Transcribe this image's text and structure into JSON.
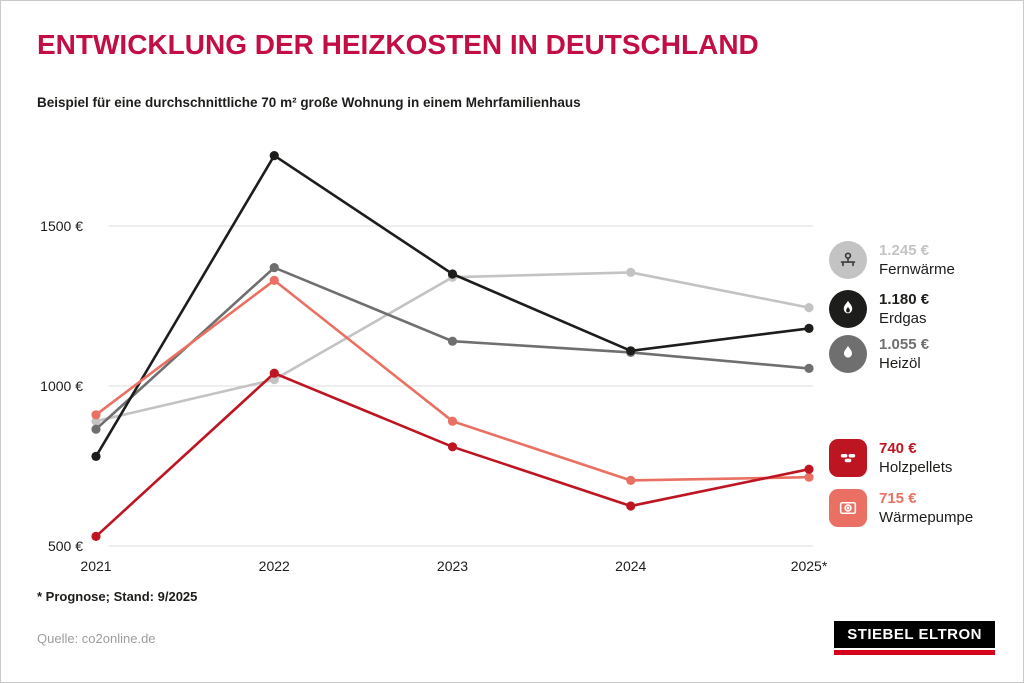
{
  "title": "ENTWICKLUNG DER HEIZKOSTEN IN DEUTSCHLAND",
  "subtitle": "Beispiel für eine durchschnittliche 70 m² große Wohnung in einem Mehrfamilienhaus",
  "footnote": "* Prognose; Stand: 9/2025",
  "source": "Quelle: co2online.de",
  "logo": {
    "text": "STIEBEL ELTRON"
  },
  "colors": {
    "title_accent": "#c20d45",
    "grid": "#dcdcdc",
    "axis_text": "#1d1d1b",
    "source_text": "#9d9d9c",
    "logo_bar": "#d4021c"
  },
  "chart_data": {
    "type": "line",
    "x": [
      "2021",
      "2022",
      "2023",
      "2024",
      "2025*"
    ],
    "yticks": [
      500,
      1000,
      1500
    ],
    "ytick_suffix": " €",
    "ylim": [
      500,
      1800
    ],
    "grid": "horizontal",
    "legend_position": "right",
    "series": [
      {
        "name": "Fernwärme",
        "color": "#c3c3c3",
        "glyph_color": "#3c3c3b",
        "badge_shape": "circle",
        "icon": "district-heating-icon",
        "values": [
          890,
          1020,
          1340,
          1355,
          1245
        ],
        "end_label": "1.245 €"
      },
      {
        "name": "Erdgas",
        "color": "#1d1d1b",
        "glyph_color": "#ffffff",
        "badge_shape": "circle",
        "icon": "flame-icon",
        "values": [
          780,
          1720,
          1350,
          1110,
          1180
        ],
        "end_label": "1.180 €"
      },
      {
        "name": "Heizöl",
        "color": "#706f6f",
        "glyph_color": "#ffffff",
        "badge_shape": "circle",
        "icon": "drop-icon",
        "values": [
          865,
          1370,
          1140,
          1105,
          1055
        ],
        "end_label": "1.055 €"
      },
      {
        "name": "Holzpellets",
        "color": "#bd1622",
        "glyph_color": "#ffffff",
        "badge_shape": "rounded",
        "icon": "pellets-icon",
        "values": [
          530,
          1040,
          810,
          625,
          740
        ],
        "end_label": "740 €"
      },
      {
        "name": "Wärmepumpe",
        "color": "#ea7063",
        "glyph_color": "#ffffff",
        "badge_shape": "rounded",
        "icon": "heat-pump-icon",
        "values": [
          910,
          1330,
          890,
          705,
          715
        ],
        "end_label": "715 €"
      }
    ]
  }
}
